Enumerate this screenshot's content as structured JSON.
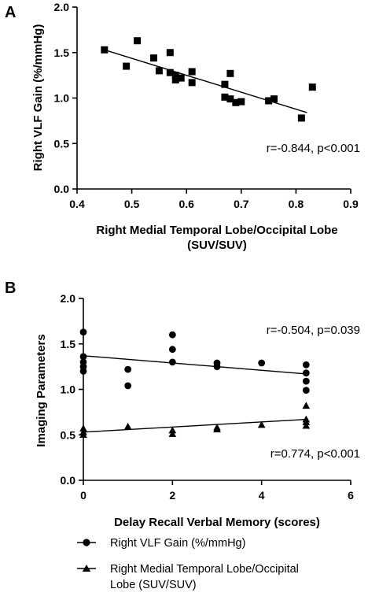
{
  "chart_data": [
    {
      "panel": "A",
      "type": "scatter",
      "xlabel_lines": [
        "Right Medial Temporal Lobe/Occipital Lobe",
        "(SUV/SUV)"
      ],
      "ylabel": "Right VLF Gain (%/mmHg)",
      "xlim": [
        0.4,
        0.9
      ],
      "ylim": [
        0.0,
        2.0
      ],
      "xticks": [
        "0.4",
        "0.5",
        "0.6",
        "0.7",
        "0.8",
        "0.9"
      ],
      "yticks": [
        "0.0",
        "0.5",
        "1.0",
        "1.5",
        "2.0"
      ],
      "marker": "square",
      "points": [
        [
          0.45,
          1.53
        ],
        [
          0.49,
          1.35
        ],
        [
          0.51,
          1.63
        ],
        [
          0.54,
          1.44
        ],
        [
          0.55,
          1.3
        ],
        [
          0.57,
          1.5
        ],
        [
          0.57,
          1.28
        ],
        [
          0.58,
          1.2
        ],
        [
          0.58,
          1.25
        ],
        [
          0.59,
          1.22
        ],
        [
          0.61,
          1.29
        ],
        [
          0.61,
          1.17
        ],
        [
          0.67,
          1.15
        ],
        [
          0.67,
          1.01
        ],
        [
          0.68,
          1.27
        ],
        [
          0.68,
          0.99
        ],
        [
          0.69,
          0.95
        ],
        [
          0.7,
          0.96
        ],
        [
          0.75,
          0.97
        ],
        [
          0.76,
          0.99
        ],
        [
          0.81,
          0.78
        ],
        [
          0.83,
          1.12
        ]
      ],
      "fit": {
        "x": [
          0.45,
          0.82
        ],
        "y": [
          1.53,
          0.84
        ]
      },
      "annotation": "r=-0.844, p<0.001",
      "grid": false
    },
    {
      "panel": "B",
      "type": "scatter",
      "xlabel": "Delay Recall Verbal Memory (scores)",
      "ylabel": "Imaging Parameters",
      "xlim": [
        0,
        6
      ],
      "ylim": [
        0.0,
        2.0
      ],
      "xticks": [
        "0",
        "2",
        "4",
        "6"
      ],
      "yticks": [
        "0.0",
        "0.5",
        "1.0",
        "1.5",
        "2.0"
      ],
      "series": [
        {
          "name": "Right VLF Gain (%/mmHg)",
          "marker": "circle",
          "points": [
            [
              0,
              1.63
            ],
            [
              0,
              1.36
            ],
            [
              0,
              1.3
            ],
            [
              0,
              1.25
            ],
            [
              0,
              1.2
            ],
            [
              1,
              1.22
            ],
            [
              1,
              1.04
            ],
            [
              2,
              1.6
            ],
            [
              2,
              1.44
            ],
            [
              2,
              1.3
            ],
            [
              3,
              1.29
            ],
            [
              3,
              1.25
            ],
            [
              4,
              1.29
            ],
            [
              5,
              1.27
            ],
            [
              5,
              1.18
            ],
            [
              5,
              1.09
            ],
            [
              5,
              0.99
            ]
          ],
          "fit": {
            "x": [
              0,
              5
            ],
            "y": [
              1.37,
              1.17
            ]
          }
        },
        {
          "name": "Right Medial Temporal Lobe/Occipital Lobe (SUV/SUV)",
          "marker": "triangle",
          "points": [
            [
              0,
              0.57
            ],
            [
              0,
              0.53
            ],
            [
              0,
              0.5
            ],
            [
              1,
              0.59
            ],
            [
              2,
              0.55
            ],
            [
              2,
              0.51
            ],
            [
              3,
              0.58
            ],
            [
              3,
              0.56
            ],
            [
              4,
              0.61
            ],
            [
              5,
              0.82
            ],
            [
              5,
              0.67
            ],
            [
              5,
              0.64
            ],
            [
              5,
              0.6
            ]
          ],
          "fit": {
            "x": [
              0,
              5
            ],
            "y": [
              0.53,
              0.67
            ]
          }
        }
      ],
      "annotations": [
        "r=-0.504, p=0.039",
        "r=0.774, p<0.001"
      ],
      "legend_position": "bottom",
      "legend_lines": [
        [
          "Right VLF Gain (%/mmHg)"
        ],
        [
          "Right Medial Temporal Lobe/Occipital",
          "Lobe (SUV/SUV)"
        ]
      ],
      "grid": false
    }
  ]
}
